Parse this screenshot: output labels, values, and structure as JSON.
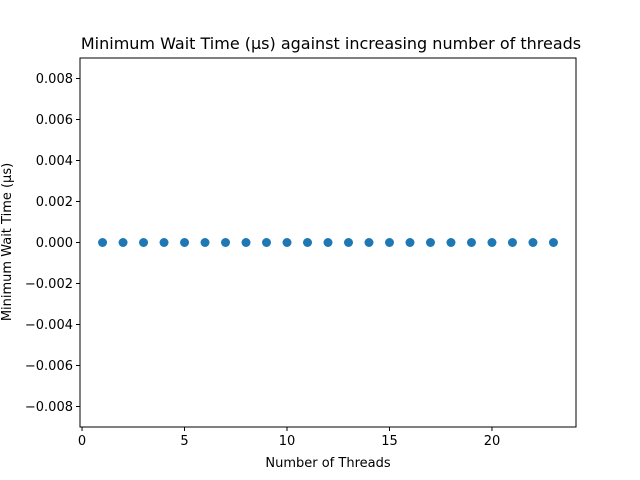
{
  "chart_data": {
    "type": "scatter",
    "title": "Minimum Wait Time (µs) against increasing number of threads",
    "xlabel": "Number of Threads",
    "ylabel": "Minimum Wait Time (µs)",
    "xlim": [
      -0.1,
      24.1
    ],
    "ylim": [
      -0.009,
      0.009
    ],
    "xticks": [
      0,
      5,
      10,
      15,
      20
    ],
    "xtick_labels": [
      "0",
      "5",
      "10",
      "15",
      "20"
    ],
    "yticks": [
      -0.008,
      -0.006,
      -0.004,
      -0.002,
      0.0,
      0.002,
      0.004,
      0.006,
      0.008
    ],
    "ytick_labels": [
      "−0.008",
      "−0.006",
      "−0.004",
      "−0.002",
      "0.000",
      "0.002",
      "0.004",
      "0.006",
      "0.008"
    ],
    "grid": false,
    "series": [
      {
        "color": "#1f77b4",
        "x": [
          1,
          2,
          3,
          4,
          5,
          6,
          7,
          8,
          9,
          10,
          11,
          12,
          13,
          14,
          15,
          16,
          17,
          18,
          19,
          20,
          21,
          22,
          23
        ],
        "y": [
          0,
          0,
          0,
          0,
          0,
          0,
          0,
          0,
          0,
          0,
          0,
          0,
          0,
          0,
          0,
          0,
          0,
          0,
          0,
          0,
          0,
          0,
          0
        ]
      }
    ]
  }
}
